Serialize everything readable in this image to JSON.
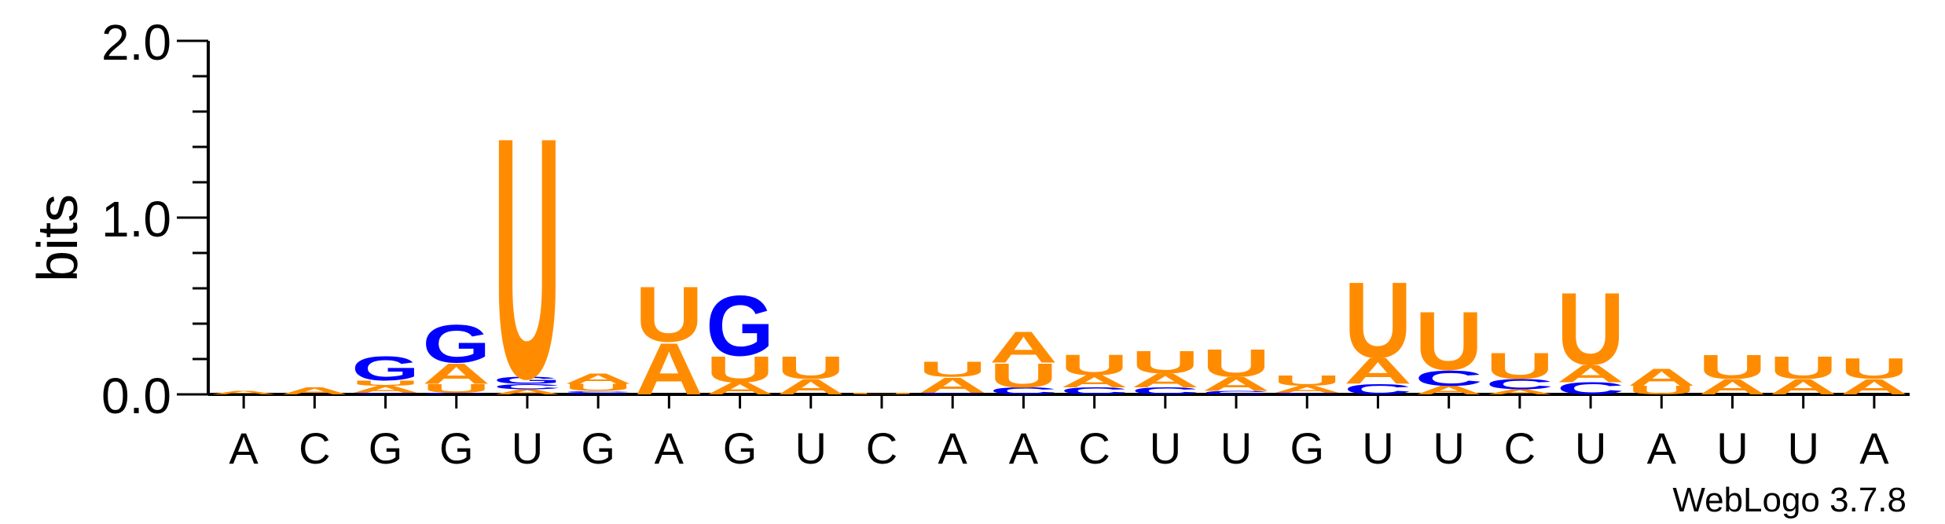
{
  "chart_data": {
    "type": "sequence-logo",
    "ylabel": "bits",
    "ylim": [
      0,
      2.0
    ],
    "yticks": [
      {
        "value": 0.0,
        "label": "0.0"
      },
      {
        "value": 1.0,
        "label": "1.0"
      },
      {
        "value": 2.0,
        "label": "2.0"
      }
    ],
    "categories": [
      "A",
      "C",
      "G",
      "G",
      "U",
      "G",
      "A",
      "G",
      "U",
      "C",
      "A",
      "A",
      "C",
      "U",
      "U",
      "G",
      "U",
      "U",
      "C",
      "U",
      "A",
      "U",
      "U",
      "A"
    ],
    "colors": {
      "A": "#ff8c00",
      "U": "#ff8c00",
      "G": "#0000ff",
      "C": "#0000ff"
    },
    "positions": [
      {
        "letters": [
          {
            "base": "A",
            "bits": 0.02
          }
        ]
      },
      {
        "letters": [
          {
            "base": "A",
            "bits": 0.04
          }
        ]
      },
      {
        "letters": [
          {
            "base": "C",
            "bits": 0.01
          },
          {
            "base": "A",
            "bits": 0.04
          },
          {
            "base": "U",
            "bits": 0.03
          },
          {
            "base": "G",
            "bits": 0.14
          }
        ]
      },
      {
        "letters": [
          {
            "base": "C",
            "bits": 0.01
          },
          {
            "base": "U",
            "bits": 0.05
          },
          {
            "base": "A",
            "bits": 0.12
          },
          {
            "base": "G",
            "bits": 0.22
          }
        ]
      },
      {
        "letters": [
          {
            "base": "A",
            "bits": 0.03
          },
          {
            "base": "C",
            "bits": 0.03
          },
          {
            "base": "G",
            "bits": 0.04
          },
          {
            "base": "U",
            "bits": 1.4
          }
        ]
      },
      {
        "letters": [
          {
            "base": "G",
            "bits": 0.01
          },
          {
            "base": "C",
            "bits": 0.01
          },
          {
            "base": "U",
            "bits": 0.04
          },
          {
            "base": "A",
            "bits": 0.06
          }
        ]
      },
      {
        "letters": [
          {
            "base": "A",
            "bits": 0.3
          },
          {
            "base": "U",
            "bits": 0.32
          }
        ]
      },
      {
        "letters": [
          {
            "base": "A",
            "bits": 0.07
          },
          {
            "base": "U",
            "bits": 0.15
          },
          {
            "base": "G",
            "bits": 0.35
          }
        ]
      },
      {
        "letters": [
          {
            "base": "A",
            "bits": 0.09
          },
          {
            "base": "U",
            "bits": 0.13
          }
        ]
      },
      {
        "letters": [
          {
            "base": "U",
            "bits": 0.01
          }
        ]
      },
      {
        "letters": [
          {
            "base": "C",
            "bits": 0.01
          },
          {
            "base": "A",
            "bits": 0.09
          },
          {
            "base": "U",
            "bits": 0.09
          }
        ]
      },
      {
        "letters": [
          {
            "base": "C",
            "bits": 0.04
          },
          {
            "base": "U",
            "bits": 0.14
          },
          {
            "base": "A",
            "bits": 0.18
          }
        ]
      },
      {
        "letters": [
          {
            "base": "C",
            "bits": 0.04
          },
          {
            "base": "A",
            "bits": 0.07
          },
          {
            "base": "U",
            "bits": 0.12
          }
        ]
      },
      {
        "letters": [
          {
            "base": "C",
            "bits": 0.04
          },
          {
            "base": "A",
            "bits": 0.08
          },
          {
            "base": "U",
            "bits": 0.13
          }
        ]
      },
      {
        "letters": [
          {
            "base": "C",
            "bits": 0.02
          },
          {
            "base": "A",
            "bits": 0.08
          },
          {
            "base": "U",
            "bits": 0.16
          }
        ]
      },
      {
        "letters": [
          {
            "base": "C",
            "bits": 0.01
          },
          {
            "base": "A",
            "bits": 0.04
          },
          {
            "base": "U",
            "bits": 0.06
          }
        ]
      },
      {
        "letters": [
          {
            "base": "C",
            "bits": 0.06
          },
          {
            "base": "A",
            "bits": 0.15
          },
          {
            "base": "U",
            "bits": 0.44
          }
        ]
      },
      {
        "letters": [
          {
            "base": "A",
            "bits": 0.05
          },
          {
            "base": "C",
            "bits": 0.09
          },
          {
            "base": "U",
            "bits": 0.34
          }
        ]
      },
      {
        "letters": [
          {
            "base": "A",
            "bits": 0.03
          },
          {
            "base": "C",
            "bits": 0.06
          },
          {
            "base": "U",
            "bits": 0.15
          }
        ]
      },
      {
        "letters": [
          {
            "base": "C",
            "bits": 0.07
          },
          {
            "base": "A",
            "bits": 0.1
          },
          {
            "base": "U",
            "bits": 0.42
          }
        ]
      },
      {
        "letters": [
          {
            "base": "U",
            "bits": 0.05
          },
          {
            "base": "A",
            "bits": 0.1
          }
        ]
      },
      {
        "letters": [
          {
            "base": "A",
            "bits": 0.09
          },
          {
            "base": "U",
            "bits": 0.14
          }
        ]
      },
      {
        "letters": [
          {
            "base": "A",
            "bits": 0.09
          },
          {
            "base": "U",
            "bits": 0.13
          }
        ]
      },
      {
        "letters": [
          {
            "base": "A",
            "bits": 0.09
          },
          {
            "base": "U",
            "bits": 0.12
          }
        ]
      }
    ],
    "credit": "WebLogo 3.7.8"
  }
}
